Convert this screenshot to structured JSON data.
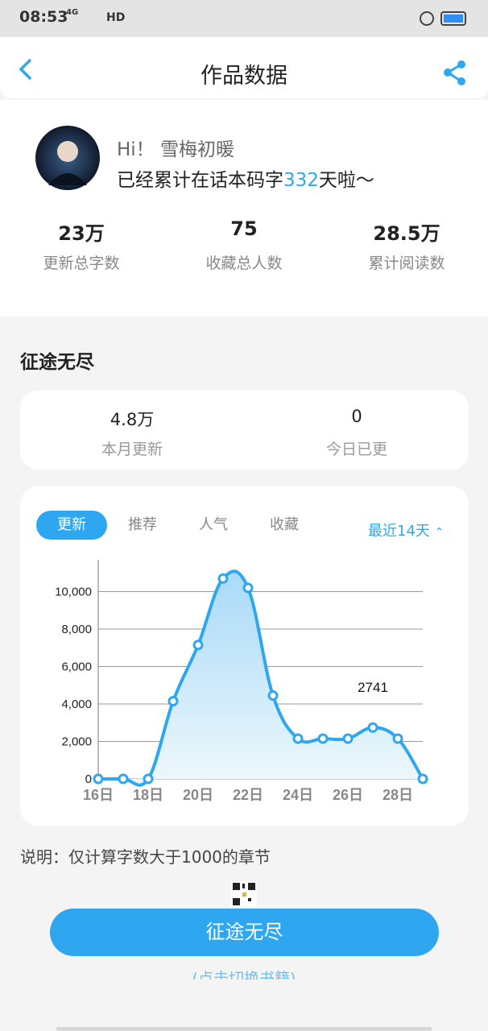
{
  "status_bar": {
    "time": "08:53",
    "network": "4G",
    "hd": "HD"
  },
  "header": {
    "title": "作品数据"
  },
  "profile": {
    "greeting": "Hi！",
    "name": "雪梅初暖",
    "message_prefix": "已经累计在话本码字",
    "days": "332",
    "message_suffix": "天啦～"
  },
  "stats": [
    {
      "value": "23万",
      "label": "更新总字数"
    },
    {
      "value": "75",
      "label": "收藏总人数"
    },
    {
      "value": "28.5万",
      "label": "累计阅读数"
    }
  ],
  "book": {
    "title": "征途无尽",
    "stats": [
      {
        "value": "4.8万",
        "label": "本月更新"
      },
      {
        "value": "0",
        "label": "今日已更"
      }
    ]
  },
  "chart_data": {
    "type": "line",
    "tabs": [
      "更新",
      "推荐",
      "人气",
      "收藏"
    ],
    "range_selector": "最近14天",
    "categories": [
      "16日",
      null,
      "18日",
      null,
      "20日",
      null,
      "22日",
      null,
      "24日",
      null,
      "26日",
      null,
      "28日",
      null
    ],
    "values": [
      0,
      0,
      0,
      4150,
      7150,
      10700,
      10200,
      4450,
      2150,
      2150,
      2150,
      2741,
      2150,
      0
    ],
    "color": "#2ea7f0",
    "ylim": [
      0,
      11700
    ],
    "yticks": [
      0,
      {
        "value": 2000,
        "label": "2,000"
      },
      {
        "value": 4000,
        "label": "4,000"
      },
      {
        "value": 6000,
        "label": "6,000"
      },
      {
        "value": 8000,
        "label": "8,000"
      },
      {
        "value": 10000,
        "label": "10,000"
      }
    ],
    "grid": true
  },
  "note": "说明：仅计算字数大于1000的章节",
  "button": "征途无尽",
  "switch_hint": "(点击切换书籍)"
}
